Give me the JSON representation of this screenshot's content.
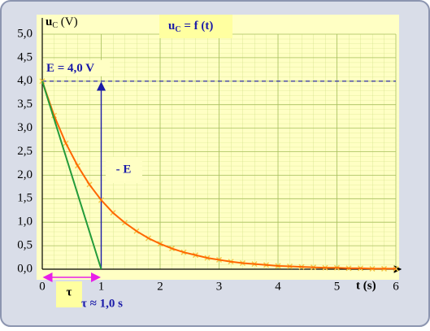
{
  "chart_data": {
    "type": "line",
    "title": "u",
    "title_subscript": "C",
    "title_rest": " = f (t)",
    "y_label": "u",
    "y_label_subscript": "C",
    "y_label_rest": " (V)",
    "x_label": "t (s)",
    "xlim": [
      0,
      6
    ],
    "xticks": [
      0,
      1,
      2,
      3,
      4,
      5,
      6
    ],
    "ylim": [
      0,
      5
    ],
    "yticks": [
      {
        "value": 0,
        "label": "0,0"
      },
      {
        "value": 0.5,
        "label": "0,5"
      },
      {
        "value": 1,
        "label": "1,0"
      },
      {
        "value": 1.5,
        "label": "1,5"
      },
      {
        "value": 2,
        "label": "2,0"
      },
      {
        "value": 2.5,
        "label": "2,5"
      },
      {
        "value": 3,
        "label": "3,0"
      },
      {
        "value": 3.5,
        "label": "3,5"
      },
      {
        "value": 4,
        "label": "4,0"
      },
      {
        "value": 4.5,
        "label": "4,5"
      },
      {
        "value": 5,
        "label": "5,0"
      }
    ],
    "grid": true,
    "series": [
      {
        "color": "#ff6600",
        "marker_color": "#f2c84a",
        "x": [
          0,
          0.2,
          0.4,
          0.6,
          0.8,
          1,
          1.2,
          1.4,
          1.6,
          1.8,
          2,
          2.2,
          2.4,
          2.6,
          2.8,
          3,
          3.2,
          3.4,
          3.6,
          3.8,
          4,
          4.2,
          4.4,
          4.6,
          4.8,
          5,
          5.2,
          5.4,
          5.6,
          5.8,
          6
        ],
        "values": [
          4.0,
          3.27,
          2.68,
          2.2,
          1.8,
          1.47,
          1.2,
          0.99,
          0.81,
          0.66,
          0.54,
          0.44,
          0.36,
          0.3,
          0.24,
          0.2,
          0.16,
          0.13,
          0.11,
          0.09,
          0.07,
          0.06,
          0.05,
          0.04,
          0.03,
          0.03,
          0.02,
          0.02,
          0.01,
          0.01,
          0.01
        ]
      },
      {
        "color": "#239b3a",
        "x": [
          0,
          1
        ],
        "values": [
          4,
          0
        ]
      }
    ],
    "reference_line": {
      "value": 4,
      "label": "E = 4,0 V",
      "color": "#1a1aa8"
    },
    "arrow_label": "- E",
    "tau": {
      "value": 1,
      "symbol": "τ",
      "label": "τ ≈ 1,0 s",
      "color": "#e81ee8"
    }
  }
}
